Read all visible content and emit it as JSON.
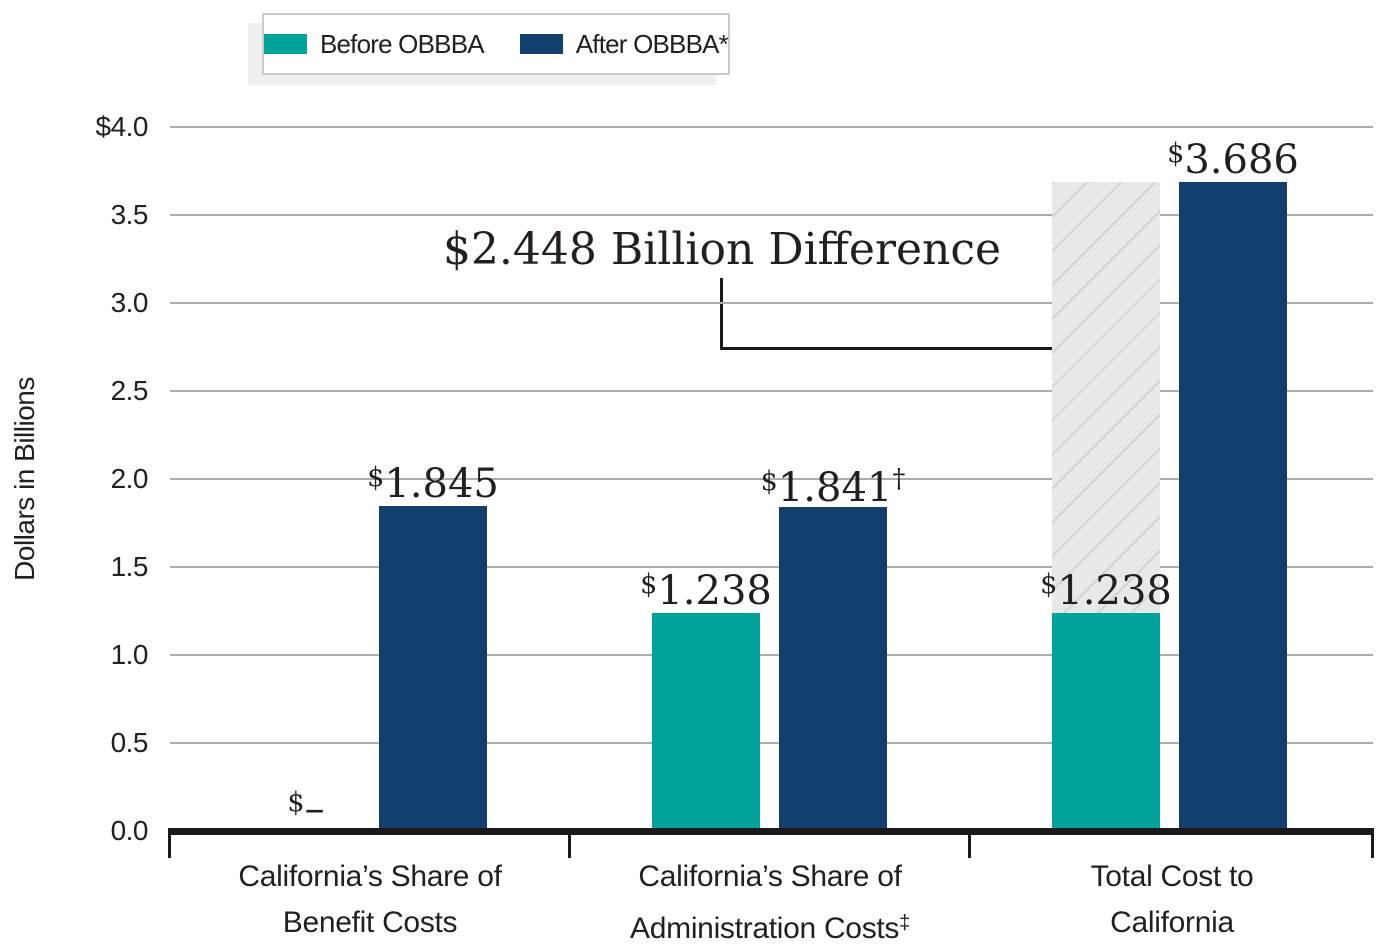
{
  "colors": {
    "before": "#00A29A",
    "after": "#123F6D",
    "gridline": "#ACACAC",
    "axis": "#1A1A1A",
    "text": "#231F20",
    "hatch_bg": "#E8E8E8",
    "hatch_line": "#D3D3D3",
    "legend_border": "#C9C9C9",
    "legend_shadow": "#EFEFEF"
  },
  "chart_data": {
    "type": "bar",
    "title": "",
    "ylabel": "Dollars in Billions",
    "xlabel": "",
    "ylim": [
      0,
      4.0
    ],
    "grid": true,
    "legend_position": "top-left",
    "y_ticks": [
      {
        "v": 4.0,
        "label": "$4.0"
      },
      {
        "v": 3.5,
        "label": "3.5"
      },
      {
        "v": 3.0,
        "label": "3.0"
      },
      {
        "v": 2.5,
        "label": "2.5"
      },
      {
        "v": 2.0,
        "label": "2.0"
      },
      {
        "v": 1.5,
        "label": "1.5"
      },
      {
        "v": 1.0,
        "label": "1.0"
      },
      {
        "v": 0.5,
        "label": "0.5"
      },
      {
        "v": 0.0,
        "label": "0.0"
      }
    ],
    "categories": [
      {
        "line1": "California’s Share of",
        "line2": "Benefit Costs",
        "sup": ""
      },
      {
        "line1": "California’s Share of",
        "line2": "Administration Costs",
        "sup": "‡"
      },
      {
        "line1": "Total Cost to",
        "line2": "California",
        "sup": ""
      }
    ],
    "series": [
      {
        "name": "Before OBBBA",
        "color_key": "before",
        "values": [
          0,
          1.238,
          1.238
        ],
        "labels": [
          {
            "cur": "$",
            "num": "–",
            "sup": ""
          },
          {
            "cur": "$",
            "num": "1.238",
            "sup": ""
          },
          {
            "cur": "$",
            "num": "1.238",
            "sup": ""
          }
        ]
      },
      {
        "name": "After OBBBA*",
        "color_key": "after",
        "values": [
          1.845,
          1.841,
          3.686
        ],
        "labels": [
          {
            "cur": "$",
            "num": "1.845",
            "sup": ""
          },
          {
            "cur": "$",
            "num": "1.841",
            "sup": "†"
          },
          {
            "cur": "$",
            "num": "3.686",
            "sup": ""
          }
        ]
      }
    ],
    "annotation": {
      "text": "$2.448 Billion Difference",
      "difference_billions": 2.448,
      "difference_group": 2,
      "hatched": true
    }
  }
}
